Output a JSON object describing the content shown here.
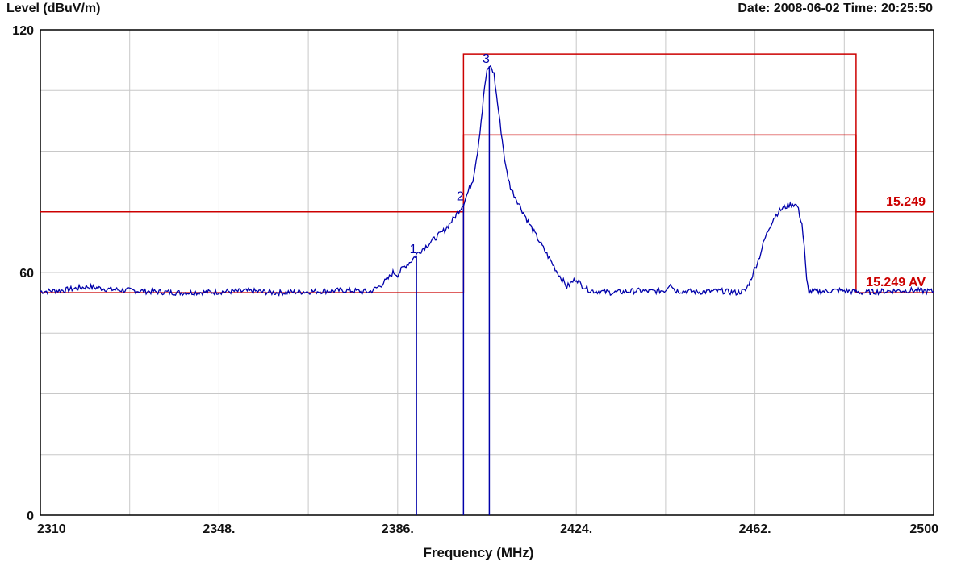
{
  "chart_data": {
    "type": "line",
    "ylabel": "Level (dBuV/m)",
    "xlabel": "Frequency (MHz)",
    "timestamp": "Date: 2008-06-02  Time: 20:25:50",
    "xlim": [
      2310,
      2500
    ],
    "ylim": [
      0,
      120
    ],
    "x_tick_labels": [
      "2310",
      "2348.",
      "2386.",
      "2424.",
      "2462.",
      "2500"
    ],
    "x_ticks": [
      2310,
      2348,
      2386,
      2424,
      2462,
      2500
    ],
    "y_tick_labels": [
      "0",
      "60",
      "120"
    ],
    "y_ticks": [
      0,
      60,
      120
    ],
    "grid": true,
    "series": [
      {
        "color": "#0000aa",
        "points": [
          [
            2310,
            55.3
          ],
          [
            2315,
            55.6
          ],
          [
            2320,
            56.5
          ],
          [
            2325,
            55.8
          ],
          [
            2330,
            55.5
          ],
          [
            2335,
            55.2
          ],
          [
            2340,
            55.0
          ],
          [
            2345,
            55.1
          ],
          [
            2350,
            55.3
          ],
          [
            2355,
            55.4
          ],
          [
            2360,
            55.0
          ],
          [
            2365,
            55.2
          ],
          [
            2370,
            55.4
          ],
          [
            2375,
            55.6
          ],
          [
            2380,
            55.2
          ],
          [
            2382,
            56.5
          ],
          [
            2384,
            58.5
          ],
          [
            2385,
            60.0
          ],
          [
            2386,
            59.5
          ],
          [
            2387,
            61.0
          ],
          [
            2388,
            62.0
          ],
          [
            2389,
            63.0
          ],
          [
            2390,
            64.5
          ],
          [
            2392,
            66.5
          ],
          [
            2394,
            68.5
          ],
          [
            2396,
            70.5
          ],
          [
            2398,
            73.5
          ],
          [
            2400,
            77.0
          ],
          [
            2402,
            83.0
          ],
          [
            2403,
            90.0
          ],
          [
            2404,
            100.0
          ],
          [
            2404.5,
            106.0
          ],
          [
            2405,
            109.5
          ],
          [
            2405.5,
            111.0
          ],
          [
            2406,
            110.5
          ],
          [
            2406.5,
            109.0
          ],
          [
            2407,
            104.0
          ],
          [
            2408,
            95.0
          ],
          [
            2409,
            86.0
          ],
          [
            2410,
            81.0
          ],
          [
            2412,
            76.5
          ],
          [
            2414,
            72.0
          ],
          [
            2416,
            68.0
          ],
          [
            2418,
            64.0
          ],
          [
            2420,
            60.0
          ],
          [
            2422,
            56.5
          ],
          [
            2423,
            57.5
          ],
          [
            2424,
            58.5
          ],
          [
            2425,
            57.0
          ],
          [
            2427,
            55.5
          ],
          [
            2432,
            55.0
          ],
          [
            2437,
            55.5
          ],
          [
            2440,
            55.3
          ],
          [
            2443,
            55.6
          ],
          [
            2444,
            57.5
          ],
          [
            2445,
            55.5
          ],
          [
            2450,
            55.2
          ],
          [
            2455,
            55.4
          ],
          [
            2458,
            55.0
          ],
          [
            2460,
            55.5
          ],
          [
            2461,
            58.0
          ],
          [
            2462,
            61.0
          ],
          [
            2463,
            64.0
          ],
          [
            2464,
            68.0
          ],
          [
            2465,
            71.0
          ],
          [
            2466,
            73.5
          ],
          [
            2467,
            75.0
          ],
          [
            2468,
            76.0
          ],
          [
            2469,
            76.5
          ],
          [
            2470,
            77.0
          ],
          [
            2471,
            76.5
          ],
          [
            2472,
            72.0
          ],
          [
            2472.5,
            66.0
          ],
          [
            2473,
            58.0
          ],
          [
            2473.5,
            55.3
          ],
          [
            2476,
            55.3
          ],
          [
            2480,
            55.6
          ],
          [
            2485,
            55.0
          ],
          [
            2490,
            55.4
          ],
          [
            2495,
            55.6
          ],
          [
            2500,
            55.3
          ]
        ]
      }
    ],
    "limit_lines": [
      {
        "color": "#cc0000",
        "segments": [
          [
            2310,
            75
          ],
          [
            2400,
            75
          ],
          [
            2400,
            114
          ],
          [
            2483.5,
            114
          ],
          [
            2483.5,
            75
          ],
          [
            2500,
            75
          ]
        ],
        "label": "15.249"
      },
      {
        "color": "#cc0000",
        "segments": [
          [
            2310,
            55
          ],
          [
            2400,
            55
          ],
          [
            2400,
            94
          ],
          [
            2483.5,
            94
          ],
          [
            2483.5,
            55
          ],
          [
            2500,
            55
          ]
        ],
        "label": "15.249 AV"
      }
    ],
    "markers": [
      {
        "label": "1",
        "x": 2390,
        "y": 64
      },
      {
        "label": "2",
        "x": 2400,
        "y": 77
      },
      {
        "label": "3",
        "x": 2405.5,
        "y": 111
      }
    ]
  }
}
